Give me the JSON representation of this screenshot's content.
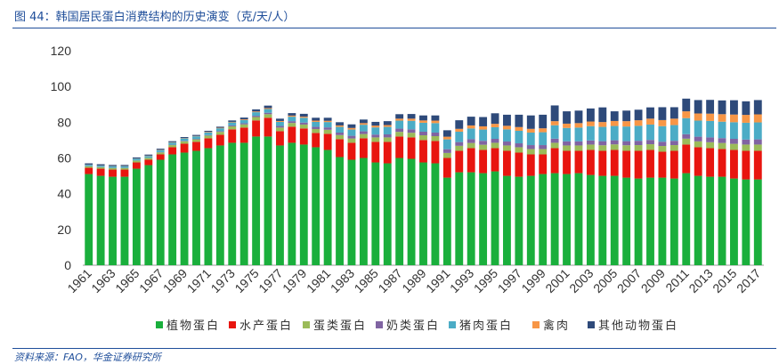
{
  "figure": {
    "title": "图 44：韩国居民蛋白消费结构的历史演变（克/天/人）",
    "source": "资料来源：FAO，华金证券研究所"
  },
  "colors": {
    "plant": "#1aaf3c",
    "aquatic": "#e8150f",
    "egg": "#9bbb59",
    "milk": "#8064a2",
    "pork": "#4bacc6",
    "poultry": "#f79646",
    "other": "#2e4a7a",
    "axis": "#9a9a9a",
    "text": "#333333"
  },
  "chart_data": {
    "type": "bar",
    "stacked": true,
    "title": "",
    "xlabel": "",
    "ylabel": "",
    "ylim": [
      0,
      120
    ],
    "yticks": [
      0,
      20,
      40,
      60,
      80,
      100,
      120
    ],
    "grid": false,
    "legend_position": "bottom",
    "categories": [
      "1961",
      "1962",
      "1963",
      "1964",
      "1965",
      "1966",
      "1967",
      "1968",
      "1969",
      "1970",
      "1971",
      "1972",
      "1973",
      "1974",
      "1975",
      "1976",
      "1977",
      "1978",
      "1979",
      "1980",
      "1981",
      "1982",
      "1983",
      "1984",
      "1985",
      "1986",
      "1987",
      "1988",
      "1989",
      "1990",
      "1991",
      "1992",
      "1993",
      "1994",
      "1995",
      "1996",
      "1997",
      "1998",
      "1999",
      "2000",
      "2001",
      "2002",
      "2003",
      "2004",
      "2005",
      "2006",
      "2007",
      "2008",
      "2009",
      "2010",
      "2011",
      "2012",
      "2013",
      "2014",
      "2015",
      "2016",
      "2017"
    ],
    "xtick_labels": [
      "1961",
      "1963",
      "1965",
      "1967",
      "1969",
      "1971",
      "1973",
      "1975",
      "1977",
      "1979",
      "1981",
      "1983",
      "1985",
      "1987",
      "1989",
      "1991",
      "1993",
      "1995",
      "1997",
      "1999",
      "2001",
      "2003",
      "2005",
      "2007",
      "2009",
      "2011",
      "2013",
      "2015",
      "2017"
    ],
    "series": [
      {
        "name": "植物蛋白",
        "key": "plant",
        "values": [
          51,
          50,
          49.5,
          49.5,
          54,
          56,
          59,
          62,
          63,
          64,
          65.5,
          67,
          68.5,
          68.5,
          72,
          72,
          67,
          68.5,
          67.5,
          66,
          64.5,
          60.5,
          59,
          60,
          57.5,
          57,
          60,
          59.5,
          57.5,
          57,
          49,
          52,
          52,
          51.5,
          52.5,
          50,
          49.5,
          50,
          51,
          51.5,
          51,
          51.5,
          50.5,
          50,
          50,
          49,
          48.5,
          49,
          49,
          48.5,
          51.5,
          50,
          49.5,
          49.5,
          48.5,
          48,
          48
        ]
      },
      {
        "name": "水产蛋白",
        "key": "aquatic",
        "values": [
          3.5,
          4,
          4,
          4,
          3.5,
          3,
          3,
          4,
          5,
          5,
          5.5,
          6,
          7.5,
          8.5,
          9,
          10.5,
          8,
          9,
          9,
          8,
          9,
          10,
          9.5,
          11,
          11.5,
          12,
          12,
          12,
          12.5,
          12.5,
          11,
          12,
          13.5,
          13,
          13,
          14,
          13.5,
          12,
          11,
          14,
          13,
          12.5,
          14,
          14,
          14.5,
          15,
          15.5,
          15.5,
          14.5,
          15.5,
          16,
          16,
          16,
          15.5,
          16,
          16,
          16
        ]
      },
      {
        "name": "蛋类蛋白",
        "key": "egg",
        "values": [
          0.8,
          0.8,
          0.9,
          0.9,
          1,
          1,
          1.1,
          1.2,
          1.3,
          1.4,
          1.5,
          1.6,
          1.7,
          1.8,
          1.9,
          2,
          2,
          2.1,
          2.2,
          2.2,
          2.3,
          2.3,
          2.4,
          2.4,
          2.5,
          2.5,
          2.6,
          2.6,
          2.7,
          2.7,
          2.8,
          2.8,
          2.9,
          2.9,
          3,
          3,
          3,
          3,
          3,
          3,
          3,
          3,
          3,
          3.1,
          3.1,
          3.1,
          3.2,
          3.2,
          3.2,
          3.2,
          3.3,
          3.3,
          3.3,
          3.4,
          3.4,
          3.5,
          3.5
        ]
      },
      {
        "name": "奶类蛋白",
        "key": "milk",
        "values": [
          0.1,
          0.1,
          0.1,
          0.1,
          0.1,
          0.1,
          0.2,
          0.2,
          0.3,
          0.3,
          0.3,
          0.4,
          0.5,
          0.6,
          0.7,
          0.8,
          0.9,
          1,
          1.1,
          1.2,
          1.3,
          1.4,
          1.5,
          1.5,
          1.6,
          1.7,
          1.8,
          1.9,
          2,
          2,
          2.1,
          2.1,
          2.1,
          2.2,
          2.2,
          2.2,
          2.2,
          2.2,
          2.2,
          2.3,
          2.3,
          2.3,
          2.3,
          2.3,
          2.3,
          2.3,
          2.4,
          2.4,
          2.4,
          2.4,
          2.5,
          2.6,
          2.7,
          2.7,
          2.8,
          2.8,
          2.9
        ]
      },
      {
        "name": "猪肉蛋白",
        "key": "pork",
        "values": [
          0.8,
          0.8,
          0.9,
          0.9,
          1,
          1,
          1.1,
          1.2,
          1.3,
          1.4,
          1.5,
          1.6,
          1.7,
          1.8,
          2,
          2.1,
          2.3,
          2.5,
          2.7,
          2.8,
          3,
          3.2,
          3.5,
          3.7,
          4,
          4.2,
          4.5,
          4.8,
          5,
          5.3,
          5.5,
          5.8,
          6,
          6.3,
          6.5,
          6.8,
          7,
          7,
          7.2,
          7.5,
          7.5,
          7.7,
          8,
          8,
          8,
          8.2,
          8.4,
          8.6,
          8.7,
          8.8,
          9,
          9,
          9.2,
          9.2,
          9.3,
          9.4,
          9.5
        ]
      },
      {
        "name": "禽肉",
        "key": "poultry",
        "values": [
          0.1,
          0.1,
          0.1,
          0.1,
          0.1,
          0.2,
          0.2,
          0.2,
          0.2,
          0.2,
          0.3,
          0.3,
          0.3,
          0.4,
          0.4,
          0.5,
          0.5,
          0.6,
          0.6,
          0.7,
          0.7,
          0.8,
          0.9,
          0.9,
          1,
          1,
          1.1,
          1.2,
          1.3,
          1.4,
          1.5,
          1.6,
          1.7,
          1.8,
          1.9,
          2,
          2.1,
          2.1,
          2.2,
          2.3,
          2.4,
          2.5,
          2.6,
          2.7,
          2.8,
          3,
          3.1,
          3.3,
          3.4,
          3.6,
          3.8,
          4,
          4.1,
          4.2,
          4.3,
          4.4,
          4.5
        ]
      },
      {
        "name": "其他动物蛋白",
        "key": "other",
        "values": [
          0.7,
          0.7,
          0.6,
          0.6,
          0.6,
          0.6,
          0.6,
          0.6,
          0.6,
          0.6,
          0.6,
          0.6,
          0.8,
          1,
          1.2,
          1.4,
          1.3,
          1.4,
          1.6,
          1.6,
          1.7,
          1.8,
          2,
          2,
          2.1,
          2.2,
          2.5,
          2.6,
          2.8,
          2.9,
          3.6,
          4.8,
          4.9,
          5.2,
          5.9,
          6.2,
          6.9,
          7.5,
          7.6,
          8.8,
          6.9,
          7,
          7.3,
          8.2,
          5.4,
          5.9,
          5.9,
          6.3,
          7.2,
          6.4,
          7.1,
          7.5,
          7.7,
          7.7,
          8,
          7.6,
          8
        ]
      }
    ]
  }
}
